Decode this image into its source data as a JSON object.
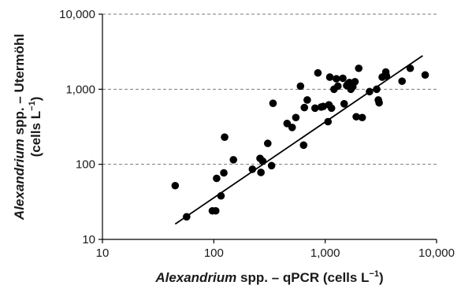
{
  "chart_data": {
    "type": "scatter",
    "xlabel": {
      "italic": "Alexandrium",
      "rest": " spp. – qPCR (cells L",
      "sup": "−1",
      "close": ")"
    },
    "ylabel": {
      "italic": "Alexandrium",
      "rest": " spp. – Utermöhl",
      "line2": "(cells L",
      "sup": "−1",
      "close": ")"
    },
    "x_scale": "log",
    "y_scale": "log",
    "xlim": [
      10,
      10000
    ],
    "ylim": [
      10,
      10000
    ],
    "x_ticks": [
      10,
      100,
      1000,
      10000
    ],
    "x_tick_labels": [
      "10",
      "100",
      "1,000",
      "10,000"
    ],
    "y_ticks": [
      10,
      100,
      1000,
      10000
    ],
    "y_tick_labels": [
      "10",
      "100",
      "1,000",
      "10,000"
    ],
    "grid": "horizontal dashed at y ticks",
    "fit_line": {
      "x": [
        45,
        7500
      ],
      "y": [
        16,
        2800
      ]
    },
    "points": [
      {
        "x": 45,
        "y": 52
      },
      {
        "x": 57,
        "y": 20
      },
      {
        "x": 97,
        "y": 24
      },
      {
        "x": 104,
        "y": 24
      },
      {
        "x": 106,
        "y": 65
      },
      {
        "x": 116,
        "y": 38
      },
      {
        "x": 123,
        "y": 77
      },
      {
        "x": 125,
        "y": 230
      },
      {
        "x": 150,
        "y": 115
      },
      {
        "x": 222,
        "y": 86
      },
      {
        "x": 260,
        "y": 120
      },
      {
        "x": 265,
        "y": 78
      },
      {
        "x": 275,
        "y": 110
      },
      {
        "x": 305,
        "y": 190
      },
      {
        "x": 330,
        "y": 96
      },
      {
        "x": 340,
        "y": 650
      },
      {
        "x": 455,
        "y": 350
      },
      {
        "x": 505,
        "y": 310
      },
      {
        "x": 545,
        "y": 420
      },
      {
        "x": 600,
        "y": 1100
      },
      {
        "x": 640,
        "y": 180
      },
      {
        "x": 650,
        "y": 570
      },
      {
        "x": 690,
        "y": 720
      },
      {
        "x": 810,
        "y": 560
      },
      {
        "x": 860,
        "y": 1650
      },
      {
        "x": 920,
        "y": 580
      },
      {
        "x": 960,
        "y": 590
      },
      {
        "x": 1060,
        "y": 370
      },
      {
        "x": 1080,
        "y": 620
      },
      {
        "x": 1100,
        "y": 1450
      },
      {
        "x": 1140,
        "y": 560
      },
      {
        "x": 1200,
        "y": 1000
      },
      {
        "x": 1260,
        "y": 1380
      },
      {
        "x": 1300,
        "y": 1100
      },
      {
        "x": 1440,
        "y": 1400
      },
      {
        "x": 1480,
        "y": 640
      },
      {
        "x": 1560,
        "y": 1120
      },
      {
        "x": 1600,
        "y": 1180
      },
      {
        "x": 1650,
        "y": 1230
      },
      {
        "x": 1700,
        "y": 1000
      },
      {
        "x": 1770,
        "y": 1080
      },
      {
        "x": 1850,
        "y": 1260
      },
      {
        "x": 1900,
        "y": 430
      },
      {
        "x": 2000,
        "y": 1900
      },
      {
        "x": 2150,
        "y": 420
      },
      {
        "x": 2500,
        "y": 930
      },
      {
        "x": 2900,
        "y": 1000
      },
      {
        "x": 3000,
        "y": 720
      },
      {
        "x": 3050,
        "y": 660
      },
      {
        "x": 3250,
        "y": 1450
      },
      {
        "x": 3500,
        "y": 1700
      },
      {
        "x": 3550,
        "y": 1500
      },
      {
        "x": 4900,
        "y": 1280
      },
      {
        "x": 5800,
        "y": 1900
      },
      {
        "x": 7900,
        "y": 1550
      }
    ]
  }
}
